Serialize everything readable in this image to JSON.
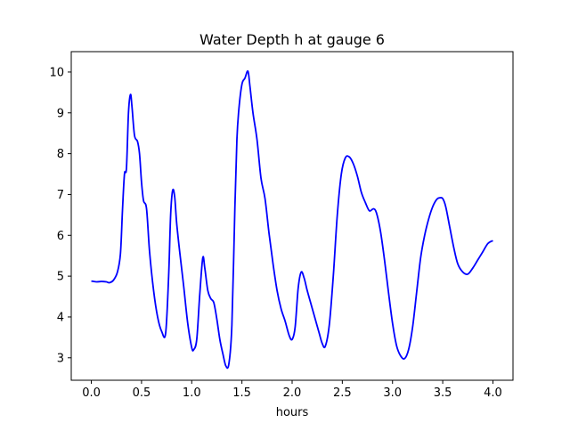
{
  "chart_data": {
    "type": "line",
    "title": "Water Depth h at gauge 6",
    "xlabel": "hours",
    "ylabel": "",
    "xlim": [
      -0.2,
      4.2
    ],
    "ylim": [
      2.45,
      10.5
    ],
    "xticks": [
      0.0,
      0.5,
      1.0,
      1.5,
      2.0,
      2.5,
      3.0,
      3.5,
      4.0
    ],
    "xtick_labels": [
      "0.0",
      "0.5",
      "1.0",
      "1.5",
      "2.0",
      "2.5",
      "3.0",
      "3.5",
      "4.0"
    ],
    "yticks": [
      3,
      4,
      5,
      6,
      7,
      8,
      9,
      10
    ],
    "ytick_labels": [
      "3",
      "4",
      "5",
      "6",
      "7",
      "8",
      "9",
      "10"
    ],
    "grid": false,
    "line_color": "#0000ff",
    "series": [
      {
        "x": [
          0.0,
          0.05,
          0.1,
          0.15,
          0.18,
          0.22,
          0.26,
          0.29,
          0.31,
          0.33,
          0.35,
          0.37,
          0.39,
          0.405,
          0.43,
          0.46,
          0.48,
          0.5,
          0.52,
          0.55,
          0.58,
          0.62,
          0.66,
          0.7,
          0.74,
          0.77,
          0.79,
          0.81,
          0.83,
          0.85,
          0.88,
          0.92,
          0.96,
          1.0,
          1.02,
          1.05,
          1.08,
          1.11,
          1.13,
          1.16,
          1.19,
          1.22,
          1.25,
          1.28,
          1.31,
          1.34,
          1.37,
          1.4,
          1.43,
          1.45,
          1.47,
          1.5,
          1.53,
          1.56,
          1.58,
          1.61,
          1.65,
          1.69,
          1.73,
          1.77,
          1.81,
          1.85,
          1.89,
          1.93,
          1.97,
          2.0,
          2.03,
          2.06,
          2.09,
          2.12,
          2.15,
          2.19,
          2.23,
          2.27,
          2.3,
          2.33,
          2.37,
          2.41,
          2.45,
          2.49,
          2.53,
          2.57,
          2.61,
          2.65,
          2.69,
          2.73,
          2.77,
          2.81,
          2.84,
          2.88,
          2.92,
          2.96,
          3.0,
          3.04,
          3.08,
          3.12,
          3.16,
          3.2,
          3.24,
          3.28,
          3.32,
          3.36,
          3.4,
          3.44,
          3.47,
          3.5,
          3.53,
          3.57,
          3.61,
          3.65,
          3.7,
          3.75,
          3.8,
          3.85,
          3.9,
          3.95,
          4.0
        ],
        "y": [
          4.88,
          4.86,
          4.87,
          4.86,
          4.84,
          4.9,
          5.1,
          5.55,
          6.6,
          7.5,
          7.65,
          9.0,
          9.45,
          9.15,
          8.45,
          8.3,
          8.0,
          7.3,
          6.85,
          6.65,
          5.6,
          4.65,
          4.0,
          3.65,
          3.6,
          5.0,
          6.5,
          7.1,
          6.95,
          6.3,
          5.6,
          4.75,
          3.85,
          3.25,
          3.2,
          3.45,
          4.55,
          5.45,
          5.2,
          4.65,
          4.45,
          4.35,
          3.95,
          3.45,
          3.1,
          2.8,
          2.85,
          3.8,
          6.7,
          8.35,
          9.1,
          9.7,
          9.85,
          10.02,
          9.65,
          9.0,
          8.35,
          7.4,
          6.9,
          6.05,
          5.3,
          4.65,
          4.2,
          3.9,
          3.55,
          3.45,
          3.75,
          4.7,
          5.1,
          4.95,
          4.65,
          4.3,
          3.95,
          3.6,
          3.35,
          3.28,
          3.8,
          5.0,
          6.5,
          7.5,
          7.9,
          7.92,
          7.75,
          7.45,
          7.05,
          6.8,
          6.6,
          6.65,
          6.55,
          6.1,
          5.4,
          4.6,
          3.85,
          3.3,
          3.05,
          2.98,
          3.2,
          3.75,
          4.6,
          5.45,
          6.0,
          6.4,
          6.7,
          6.88,
          6.92,
          6.9,
          6.7,
          6.2,
          5.7,
          5.3,
          5.1,
          5.05,
          5.2,
          5.4,
          5.6,
          5.8,
          5.87
        ]
      }
    ]
  }
}
